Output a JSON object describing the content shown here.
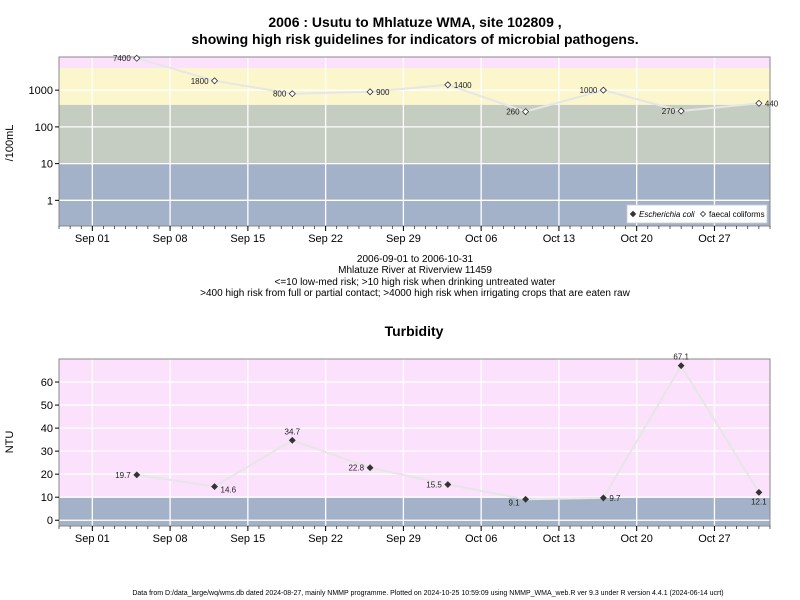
{
  "chart_data": [
    {
      "type": "line",
      "title": [
        "2006 : Usutu to Mhlatuze WMA, site 102809 ,",
        "showing high risk guidelines for indicators of microbial pathogens."
      ],
      "ylabel": "/100mL",
      "y_scale": "log",
      "ylim": [
        0.2,
        8000
      ],
      "yticks": [
        1,
        10,
        100,
        1000
      ],
      "ytick_labels": [
        "1",
        "10",
        "100",
        "1000"
      ],
      "xlim": [
        "2006-08-29",
        "2006-11-01"
      ],
      "xticks": [
        "2006-09-01",
        "2006-09-08",
        "2006-09-15",
        "2006-09-22",
        "2006-09-29",
        "2006-10-06",
        "2006-10-13",
        "2006-10-20",
        "2006-10-27"
      ],
      "xtick_labels": [
        "Sep 01",
        "Sep 08",
        "Sep 15",
        "Sep 22",
        "Sep 29",
        "Oct 06",
        "Oct 13",
        "Oct 20",
        "Oct 27"
      ],
      "grid": true,
      "bands": [
        {
          "from": 0.2,
          "to": 10,
          "color": "#a3b2c9"
        },
        {
          "from": 10,
          "to": 400,
          "color": "#c5ccc1"
        },
        {
          "from": 400,
          "to": 4000,
          "color": "#fbf6cc"
        },
        {
          "from": 4000,
          "to": 8000,
          "color": "#fbe1fb"
        }
      ],
      "legend": {
        "placement": "bottom-right",
        "entries": [
          {
            "label": "Escherichia coli",
            "marker": "filled-diamond"
          },
          {
            "label": "faecal coliforms",
            "marker": "open-diamond"
          }
        ]
      },
      "series": [
        {
          "name": "faecal coliforms",
          "marker": "open-diamond",
          "x": [
            "2006-09-05",
            "2006-09-12",
            "2006-09-19",
            "2006-09-26",
            "2006-10-03",
            "2006-10-10",
            "2006-10-17",
            "2006-10-24",
            "2006-10-31"
          ],
          "values": [
            7400,
            1800,
            800,
            900,
            1400,
            260,
            1000,
            270,
            440
          ],
          "labels": [
            "7400",
            "1800",
            "800",
            "900",
            "1400",
            "260",
            "1000",
            "270",
            "440"
          ],
          "label_side": [
            "left",
            "left",
            "left",
            "right",
            "right",
            "left",
            "left",
            "left",
            "right"
          ]
        }
      ],
      "caption": [
        "2006-09-01 to 2006-10-31",
        "Mhlatuze River at Riverview 11459",
        "<=10 low-med risk; >10 high risk when drinking untreated water",
        ">400 high risk from full or partial contact; >4000 high risk when irrigating crops that are eaten raw"
      ]
    },
    {
      "type": "line",
      "title": "Turbidity",
      "ylabel": "NTU",
      "ylim": [
        -2.5,
        70
      ],
      "yticks": [
        0,
        10,
        20,
        30,
        40,
        50,
        60
      ],
      "ytick_labels": [
        "0",
        "10",
        "20",
        "30",
        "40",
        "50",
        "60"
      ],
      "xlim": [
        "2006-08-29",
        "2006-11-01"
      ],
      "xticks": [
        "2006-09-01",
        "2006-09-08",
        "2006-09-15",
        "2006-09-22",
        "2006-09-29",
        "2006-10-06",
        "2006-10-13",
        "2006-10-20",
        "2006-10-27"
      ],
      "xtick_labels": [
        "Sep 01",
        "Sep 08",
        "Sep 15",
        "Sep 22",
        "Sep 29",
        "Oct 06",
        "Oct 13",
        "Oct 20",
        "Oct 27"
      ],
      "grid": true,
      "bands": [
        {
          "from": -2.5,
          "to": 10,
          "color": "#a3b2c9"
        },
        {
          "from": 10,
          "to": 70,
          "color": "#fbe1fb"
        }
      ],
      "series": [
        {
          "marker": "filled-diamond",
          "x": [
            "2006-09-05",
            "2006-09-12",
            "2006-09-19",
            "2006-09-26",
            "2006-10-03",
            "2006-10-10",
            "2006-10-17",
            "2006-10-24",
            "2006-10-31"
          ],
          "values": [
            19.7,
            14.6,
            34.7,
            22.8,
            15.5,
            9.1,
            9.7,
            67.1,
            12.1
          ],
          "labels": [
            "19.7",
            "14.6",
            "34.7",
            "22.8",
            "15.5",
            "9.1",
            "9.7",
            "67.1",
            "12.1"
          ],
          "label_side": [
            "left",
            "right-below",
            "above",
            "left",
            "left",
            "left-below",
            "right",
            "above",
            "below"
          ]
        }
      ]
    }
  ],
  "footer": "Data from D:/data_large/wq/wms.db dated 2024-08-27, mainly NMMP programme. Plotted on 2024-10-25 10:59:09 using NMMP_WMA_web.R ver 9.3 under R version 4.4.1 (2024-06-14 ucrt)"
}
